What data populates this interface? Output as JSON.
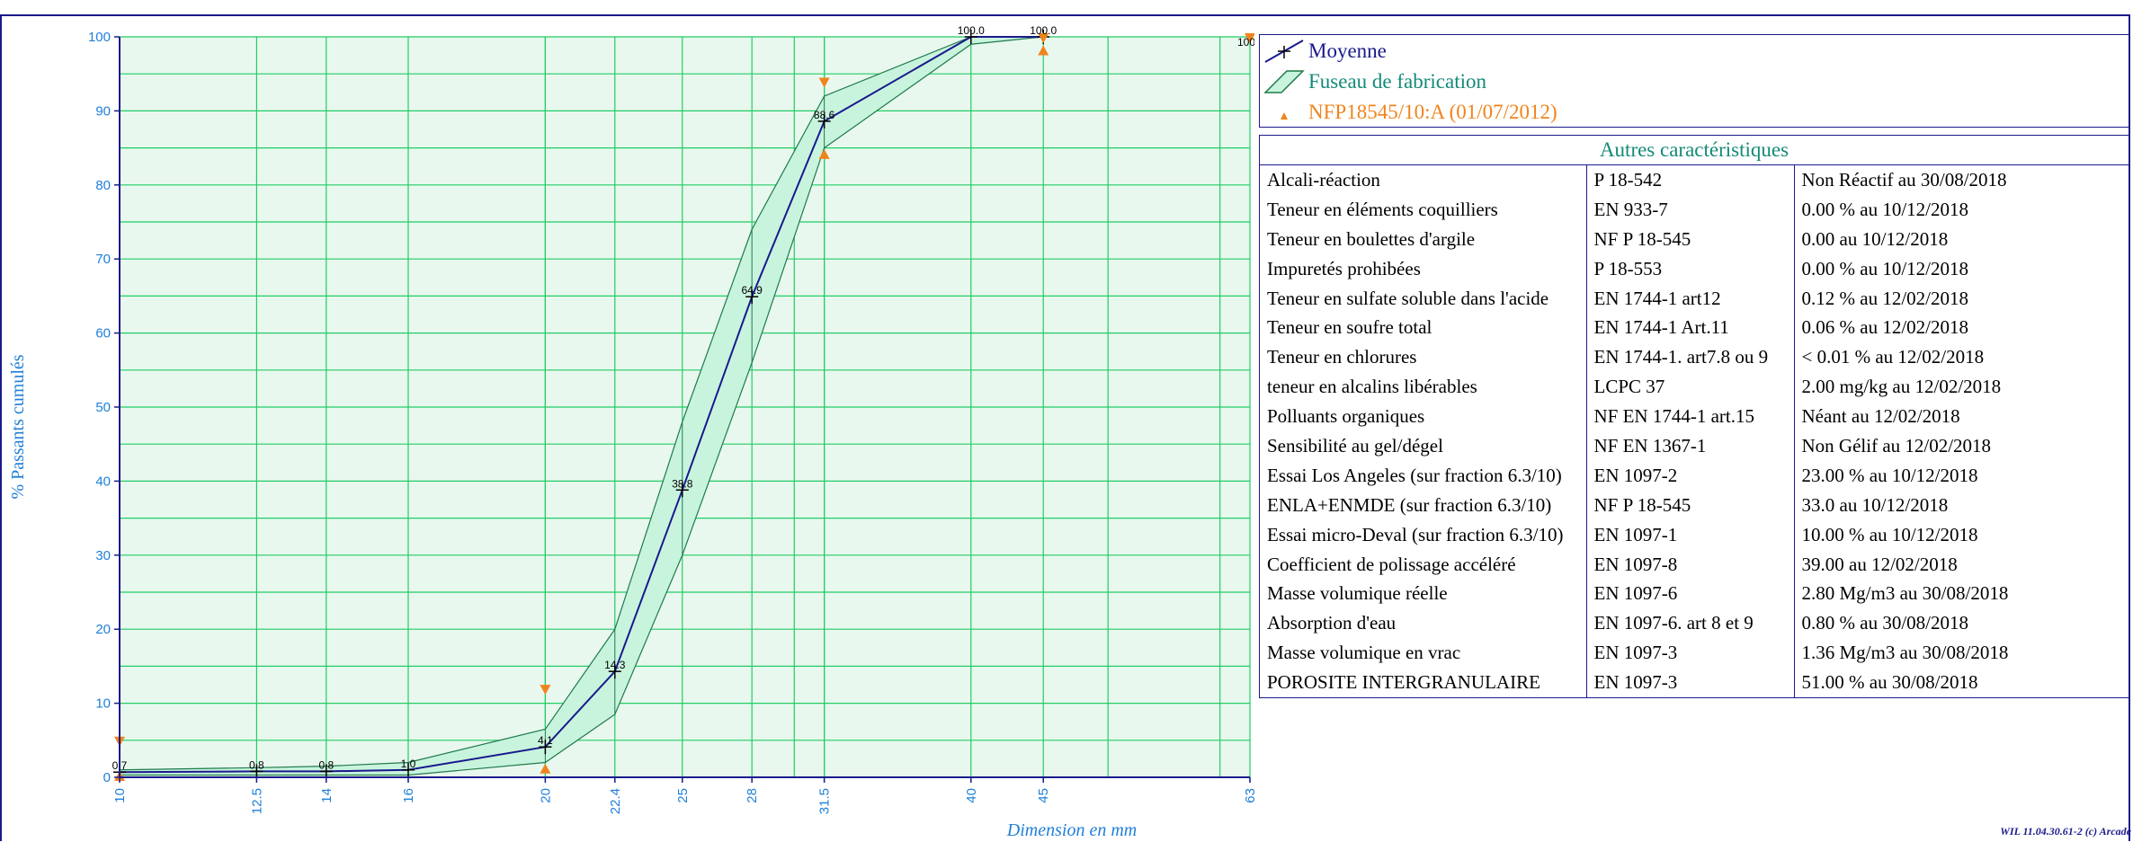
{
  "chart_data": {
    "type": "line",
    "xlabel": "Dimension en mm",
    "ylabel": "% Passants cumulés",
    "x_scale": "log",
    "xlim": [
      10,
      63
    ],
    "ylim": [
      0,
      100
    ],
    "y_ticks": [
      "0",
      "10",
      "20",
      "30",
      "40",
      "50",
      "60",
      "70",
      "80",
      "90",
      "100"
    ],
    "x_tick_labels": [
      "10",
      "12.5",
      "14",
      "16",
      "20",
      "22.4",
      "25",
      "28",
      "31.5",
      "40",
      "45",
      "63"
    ],
    "x_ticks": [
      10,
      12.5,
      14,
      16,
      20,
      22.4,
      25,
      28,
      31.5,
      40,
      45,
      63
    ],
    "grid": true,
    "series": [
      {
        "name": "Moyenne",
        "x": [
          10,
          12.5,
          14,
          16,
          20,
          22.4,
          25,
          28,
          31.5,
          40,
          45
        ],
        "y": [
          0.7,
          0.8,
          0.8,
          1.0,
          4.1,
          14.3,
          38.8,
          64.9,
          88.6,
          100.0,
          100.0
        ],
        "labels": [
          "0.7",
          "0.8",
          "0.8",
          "1.0",
          "4.1",
          "14.3",
          "38.8",
          "64.9",
          "88.6",
          "100.0",
          "100.0"
        ]
      },
      {
        "name": "Fuseau de fabrication",
        "x": [
          10,
          12.5,
          14,
          16,
          20,
          22.4,
          25,
          28,
          31.5,
          40,
          45
        ],
        "upper": [
          1.0,
          1.3,
          1.5,
          2.0,
          6.5,
          20.0,
          48.0,
          74.0,
          92.0,
          100.0,
          100.0
        ],
        "lower": [
          0.3,
          0.3,
          0.3,
          0.3,
          2.0,
          8.5,
          30.0,
          56.0,
          85.0,
          99.0,
          100.0
        ]
      },
      {
        "name": "NFP18545/10:A (01/07/2012)",
        "upper_x": [
          10,
          20,
          31.5,
          45,
          63
        ],
        "upper_y": [
          5,
          12,
          94,
          100,
          100
        ],
        "lower_x": [
          10,
          20,
          31.5,
          45
        ],
        "lower_y": [
          0,
          1,
          84,
          98
        ]
      }
    ],
    "end_label": "100.",
    "colors": {
      "moyenne": "#1a1a8c",
      "fuseau_fill": "#c8f4de",
      "fuseau_stroke": "#1f7a4a",
      "spec": "#f0841c",
      "grid": "#22cc66",
      "plot_bg": "#e8f8ee",
      "tick_text": "#1f7fd8"
    }
  },
  "legend": [
    {
      "label": "Moyenne",
      "color": "#1a1a8c",
      "icon": "moyenne-line-icon"
    },
    {
      "label": "Fuseau de fabrication",
      "color": "#138a78",
      "icon": "fuseau-band-icon"
    },
    {
      "label": "NFP18545/10:A (01/07/2012)",
      "color": "#f0841c",
      "icon": "spec-triangle-icon"
    }
  ],
  "characteristics": {
    "title": "Autres caractéristiques",
    "rows": [
      [
        "Alcali-réaction",
        "P 18-542",
        "Non Réactif  au 30/08/2018"
      ],
      [
        "Teneur en éléments coquilliers",
        "EN 933-7",
        "0.00 %  au 10/12/2018"
      ],
      [
        "Teneur en boulettes d'argile",
        "NF P 18-545",
        "0.00   au 10/12/2018"
      ],
      [
        "Impuretés prohibées",
        "P 18-553",
        "0.00 %  au 10/12/2018"
      ],
      [
        "Teneur en sulfate soluble dans l'acide",
        "EN 1744-1 art12",
        "0.12 %  au 12/02/2018"
      ],
      [
        "Teneur en soufre total",
        "EN 1744-1 Art.11",
        "0.06 %  au 12/02/2018"
      ],
      [
        "Teneur en chlorures",
        "EN 1744-1. art7.8 ou 9",
        "< 0.01 %  au 12/02/2018"
      ],
      [
        "teneur en alcalins libérables",
        "LCPC 37",
        "2.00 mg/kg  au 12/02/2018"
      ],
      [
        "Polluants organiques",
        "NF EN 1744-1 art.15",
        "Néant  au 12/02/2018"
      ],
      [
        "Sensibilité au gel/dégel",
        "NF EN 1367-1",
        "Non Gélif  au 12/02/2018"
      ],
      [
        "Essai Los Angeles (sur fraction 6.3/10)",
        "EN 1097-2",
        "23.00 %  au 10/12/2018"
      ],
      [
        "ENLA+ENMDE (sur fraction 6.3/10)",
        "NF P 18-545",
        "33.0   au 10/12/2018"
      ],
      [
        "Essai micro-Deval (sur fraction 6.3/10)",
        "EN 1097-1",
        "10.00 %  au 10/12/2018"
      ],
      [
        "Coefficient de polissage accéléré",
        "EN 1097-8",
        "39.00   au 12/02/2018"
      ],
      [
        "Masse volumique réelle",
        "EN 1097-6",
        "2.80 Mg/m3  au 30/08/2018"
      ],
      [
        "Absorption d'eau",
        "EN 1097-6. art 8 et 9",
        "0.80 %  au 30/08/2018"
      ],
      [
        "Masse volumique en vrac",
        "EN 1097-3",
        "1.36 Mg/m3  au 30/08/2018"
      ],
      [
        "POROSITE INTERGRANULAIRE",
        "EN 1097-3",
        "51.00 %  au 30/08/2018"
      ]
    ]
  },
  "footer": "WIL 11.04.30.61-2 (c) Arcade"
}
